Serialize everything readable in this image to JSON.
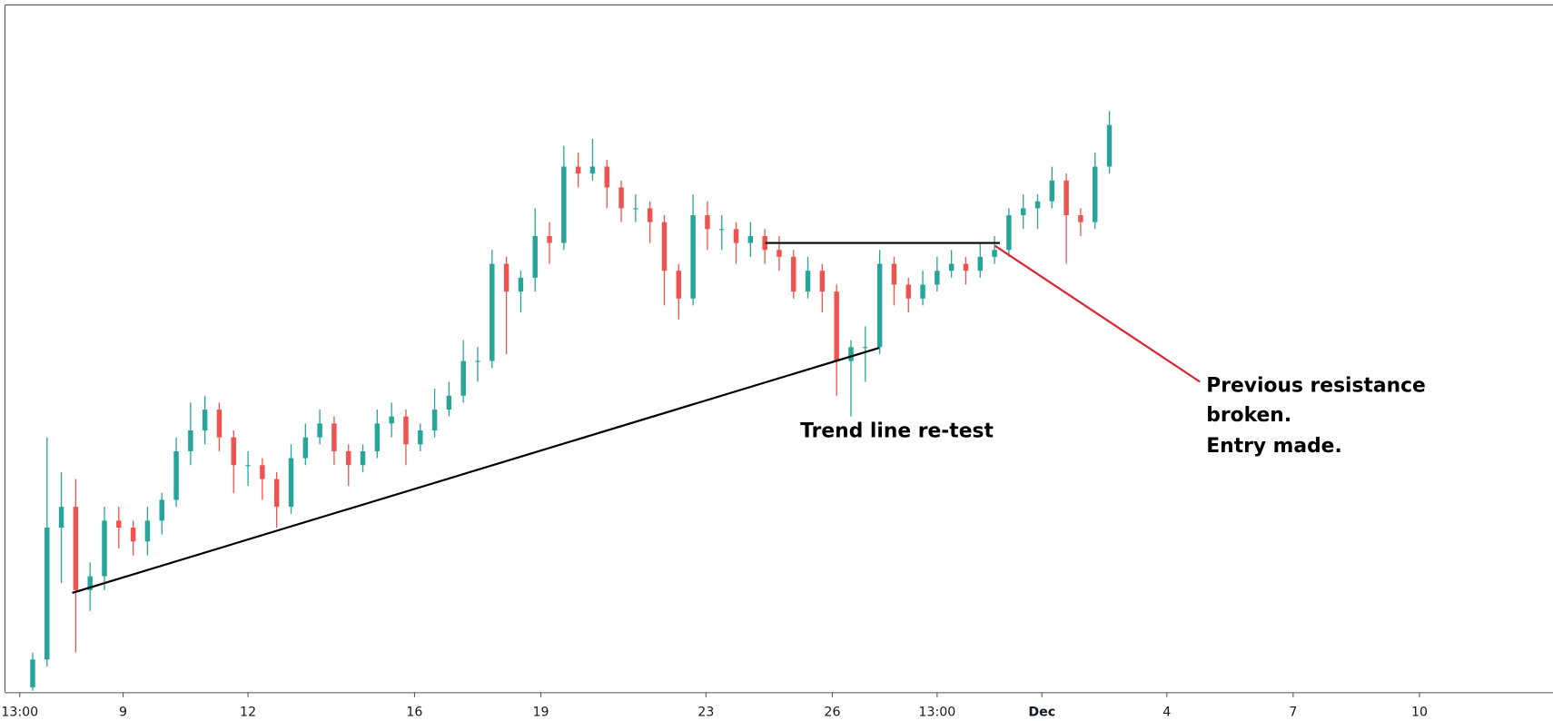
{
  "chart_data": {
    "type": "candlestick",
    "up_color": "#26a69a",
    "down_color": "#ef5350",
    "open": [
      1,
      5,
      24,
      27,
      15,
      17,
      25,
      24,
      22,
      25,
      28,
      35,
      38,
      41,
      37,
      33,
      33,
      31,
      27,
      34,
      37,
      39,
      35,
      33,
      35,
      39,
      40,
      36,
      38,
      41,
      43,
      48,
      48,
      62,
      58,
      60,
      66,
      65,
      76,
      75,
      76,
      73,
      70,
      70,
      68,
      61,
      57,
      69,
      67,
      67,
      65,
      66,
      64,
      63,
      58,
      61,
      58,
      48,
      50,
      50,
      62,
      59,
      57,
      59,
      61,
      62,
      61,
      63,
      64,
      69,
      70,
      71,
      74,
      69,
      68,
      76
    ],
    "high": [
      6,
      37,
      32,
      31,
      19,
      27,
      27,
      25,
      27,
      29,
      37,
      42,
      43,
      42,
      38,
      35,
      34,
      32,
      36,
      39,
      41,
      40,
      36,
      36,
      41,
      42,
      41,
      39,
      44,
      45,
      51,
      50,
      64,
      63,
      61,
      70,
      68,
      79,
      78,
      80,
      77,
      74,
      72,
      71,
      69,
      62,
      72,
      71,
      69,
      68,
      68,
      67,
      66,
      64,
      63,
      62,
      59,
      51,
      53,
      64,
      63,
      60,
      61,
      63,
      64,
      63,
      65,
      66,
      70,
      72,
      72,
      76,
      75,
      70,
      78,
      84
    ],
    "low": [
      0.5,
      4,
      16,
      6,
      12,
      15,
      21,
      20,
      20,
      23,
      27,
      33,
      36,
      35,
      29,
      30,
      28,
      24,
      26,
      33,
      36,
      33,
      30,
      32,
      34,
      37,
      33,
      35,
      37,
      40,
      42,
      45,
      47,
      49,
      55,
      58,
      62,
      64,
      73,
      74,
      70,
      68,
      68,
      65,
      56,
      54,
      56,
      64,
      64,
      62,
      63,
      62,
      61,
      57,
      57,
      55,
      43,
      40,
      45,
      49,
      56,
      55,
      56,
      58,
      60,
      59,
      60,
      62,
      63,
      67,
      67,
      70,
      62,
      66,
      67,
      75
    ],
    "close": [
      5,
      24,
      27,
      15,
      17,
      25,
      24,
      22,
      25,
      28,
      35,
      38,
      41,
      37,
      33,
      33,
      31,
      27,
      34,
      37,
      39,
      35,
      33,
      35,
      39,
      40,
      36,
      38,
      41,
      43,
      48,
      48,
      62,
      58,
      60,
      66,
      65,
      76,
      75,
      76,
      73,
      70,
      70,
      68,
      61,
      57,
      69,
      67,
      67,
      65,
      66,
      64,
      63,
      58,
      61,
      58,
      48,
      50,
      50,
      62,
      59,
      57,
      59,
      61,
      62,
      61,
      63,
      64,
      69,
      70,
      71,
      74,
      69,
      68,
      76,
      82
    ],
    "ylim": [
      0,
      100
    ],
    "xlim": [
      -1.93,
      105.9
    ],
    "xticks": [
      {
        "value": -0.9,
        "label": "13:00"
      },
      {
        "value": 6.3,
        "label": "9"
      },
      {
        "value": 15.0,
        "label": "12"
      },
      {
        "value": 26.6,
        "label": "16"
      },
      {
        "value": 35.4,
        "label": "19"
      },
      {
        "value": 46.9,
        "label": "23"
      },
      {
        "value": 55.7,
        "label": "26"
      },
      {
        "value": 63.0,
        "label": "13:00"
      },
      {
        "value": 70.3,
        "label": "Dec",
        "bold": true
      },
      {
        "value": 79.0,
        "label": "4"
      },
      {
        "value": 87.8,
        "label": "7"
      },
      {
        "value": 96.6,
        "label": "10"
      }
    ],
    "lines": [
      {
        "x": [
          2.76,
          58.97
        ],
        "y": [
          14.6,
          49.9
        ],
        "color": "#000000"
      },
      {
        "x": [
          51.03,
          67.38
        ],
        "y": [
          65.0,
          65.0
        ],
        "color": "#000000"
      },
      {
        "x": [
          67.03,
          81.31
        ],
        "y": [
          64.6,
          45.0
        ],
        "color": "#e0202a"
      }
    ],
    "annotations": [
      {
        "text": "Trend line re-test"
      },
      {
        "lines": [
          "Previous resistance",
          "broken.",
          "Entry made."
        ]
      }
    ]
  }
}
